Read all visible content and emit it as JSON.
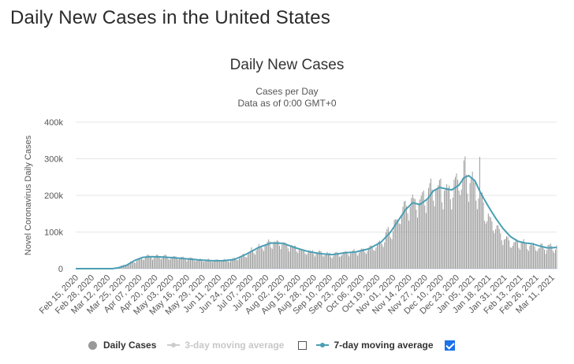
{
  "page": {
    "title": "Daily New Cases in the United States"
  },
  "chart_data": {
    "type": "bar",
    "title": "Daily New Cases",
    "subtitle": "Cases per Day",
    "subtitle2": "Data as of 0:00 GMT+0",
    "xlabel": "",
    "ylabel": "Novel Coronavirus Daily Cases",
    "ylim": [
      0,
      400000
    ],
    "yticks": [
      0,
      100000,
      200000,
      300000,
      400000
    ],
    "ytick_labels": [
      "0",
      "100k",
      "200k",
      "300k",
      "400k"
    ],
    "xtick_labels": [
      "Feb 15, 2020",
      "Feb 28, 2020",
      "Mar 12, 2020",
      "Mar 25, 2020",
      "Apr 07, 2020",
      "Apr 20, 2020",
      "May 03, 2020",
      "May 16, 2020",
      "May 29, 2020",
      "Jun 11, 2020",
      "Jun 24, 2020",
      "Jul 07, 2020",
      "Jul 20, 2020",
      "Aug 02, 2020",
      "Aug 15, 2020",
      "Aug 28, 2020",
      "Sep 10, 2020",
      "Sep 23, 2020",
      "Oct 06, 2020",
      "Oct 19, 2020",
      "Nov 01, 2020",
      "Nov 14, 2020",
      "Nov 27, 2020",
      "Dec 10, 2020",
      "Dec 23, 2020",
      "Jan 05, 2021",
      "Jan 18, 2021",
      "Jan 31, 2021",
      "Feb 13, 2021",
      "Feb 26, 2021",
      "Mar 11, 2021"
    ],
    "day_range": {
      "start": "Feb 15, 2020",
      "days": 395
    },
    "series": [
      {
        "name": "Daily Cases",
        "kind": "bar",
        "color": "#999999",
        "description": "daily values estimated from 7-day average with weekday noise",
        "anchors_day": [
          0,
          30,
          40,
          55,
          60,
          75,
          90,
          100,
          110,
          125,
          135,
          145,
          155,
          160,
          170,
          180,
          190,
          200,
          210,
          220,
          230,
          240,
          250,
          260,
          265,
          270,
          275,
          280,
          285,
          290,
          295,
          300,
          305,
          310,
          315,
          320,
          325,
          330,
          335,
          340,
          345,
          350,
          355,
          360,
          365,
          370,
          375,
          380,
          385,
          390,
          394
        ],
        "anchors_value": [
          0,
          0,
          10000,
          30000,
          34000,
          31000,
          28000,
          23000,
          22000,
          22000,
          30000,
          50000,
          63000,
          70000,
          68000,
          55000,
          45000,
          43000,
          37000,
          42000,
          45000,
          52000,
          70000,
          110000,
          140000,
          165000,
          180000,
          175000,
          190000,
          215000,
          222000,
          218000,
          200000,
          225000,
          240000,
          255000,
          230000,
          190000,
          160000,
          130000,
          110000,
          85000,
          72000,
          67000,
          70000,
          65000,
          58000,
          57000,
          55000,
          58000,
          57000
        ],
        "peak": {
          "day": 331,
          "value": 305000
        }
      },
      {
        "name": "3-day moving average",
        "kind": "line",
        "color": "#cccccc",
        "visible": false
      },
      {
        "name": "7-day moving average",
        "kind": "line",
        "color": "#4a9fb5",
        "visible": true,
        "points_day": [
          0,
          30,
          36,
          42,
          48,
          55,
          62,
          70,
          80,
          90,
          100,
          110,
          120,
          130,
          140,
          150,
          160,
          170,
          180,
          190,
          200,
          210,
          220,
          230,
          240,
          250,
          258,
          264,
          270,
          276,
          282,
          288,
          293,
          298,
          303,
          308,
          314,
          318,
          322,
          327,
          332,
          338,
          344,
          350,
          356,
          362,
          368,
          374,
          380,
          386,
          390,
          394
        ],
        "points_value": [
          0,
          0,
          3000,
          10000,
          22000,
          31000,
          33000,
          32000,
          30000,
          27000,
          24000,
          22000,
          21500,
          25000,
          40000,
          58000,
          70000,
          69000,
          57000,
          47000,
          41000,
          38000,
          43000,
          46000,
          54000,
          72000,
          100000,
          130000,
          160000,
          180000,
          175000,
          190000,
          212000,
          222000,
          218000,
          215000,
          228000,
          248000,
          254000,
          240000,
          205000,
          170000,
          138000,
          110000,
          88000,
          75000,
          70000,
          68000,
          62000,
          57000,
          57000,
          58000
        ]
      }
    ],
    "legend": {
      "position": "bottom"
    }
  },
  "legend": {
    "daily_label": "Daily Cases",
    "ma3_label": "3-day moving average",
    "ma7_label": "7-day moving average",
    "ma3_checked": false,
    "ma7_checked": true
  }
}
